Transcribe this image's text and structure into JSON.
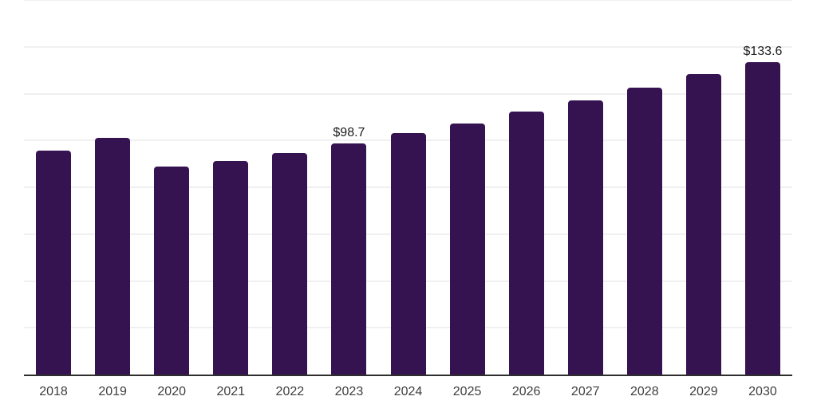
{
  "chart_data": {
    "type": "bar",
    "title": "",
    "xlabel": "",
    "ylabel": "",
    "categories": [
      "2018",
      "2019",
      "2020",
      "2021",
      "2022",
      "2023",
      "2024",
      "2025",
      "2026",
      "2027",
      "2028",
      "2029",
      "2030"
    ],
    "values": [
      95.8,
      101.0,
      88.7,
      91.3,
      94.6,
      98.7,
      103.3,
      107.1,
      112.2,
      117.1,
      122.5,
      128.2,
      133.6
    ],
    "annotations": [
      {
        "category": "2023",
        "text": "$98.7"
      },
      {
        "category": "2030",
        "text": "$133.6"
      }
    ],
    "ylim": [
      0,
      160
    ],
    "gridline_step": 20,
    "grid": true,
    "legend_position": "none",
    "y_tick_labels_visible": false,
    "colors": {
      "bar": "#351351",
      "gridline": "#f0f0f1",
      "axis_line": "#2e2e2e",
      "tick_label": "#3e3e3e",
      "annotation": "#1a1a1a",
      "background": "#ffffff"
    }
  }
}
